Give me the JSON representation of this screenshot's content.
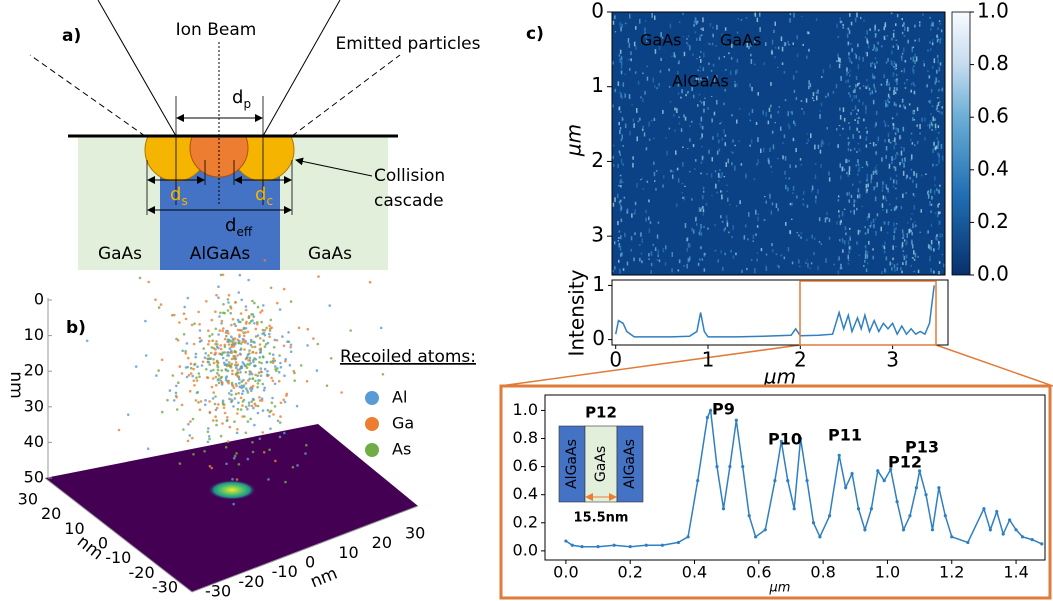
{
  "panel_a": {
    "label": "a)",
    "ion_beam": "Ion Beam",
    "emitted": "Emitted particles",
    "dims": [
      {
        "symbol": "d",
        "sub": "p"
      },
      {
        "symbol": "d",
        "sub": "s"
      },
      {
        "symbol": "d",
        "sub": "c"
      },
      {
        "symbol": "d",
        "sub": "eff"
      }
    ],
    "cascade": [
      "Collision",
      "cascade"
    ],
    "materials": [
      "GaAs",
      "AlGaAs",
      "GaAs"
    ]
  },
  "panel_b": {
    "label": "b)",
    "legend_title": "Recoiled atoms:",
    "legend": [
      {
        "name": "Al",
        "color": "#5b9bd5"
      },
      {
        "name": "Ga",
        "color": "#ed7d31"
      },
      {
        "name": "As",
        "color": "#70ad47"
      }
    ],
    "z_label": "nm",
    "z_ticks": [
      0,
      10,
      20,
      30,
      40,
      50
    ],
    "y_label": "nm",
    "y_ticks": [
      30,
      20,
      10,
      0,
      -10,
      -20,
      -30
    ],
    "x_label": "nm",
    "x_ticks": [
      -30,
      -20,
      -10,
      0,
      10,
      20,
      30
    ]
  },
  "panel_c": {
    "label": "c)",
    "heatmap": {
      "ylabel": "µm",
      "ylim": [
        0,
        3.52
      ],
      "yticks": [
        0,
        1,
        2,
        3
      ],
      "annotations": [
        "GaAs",
        "GaAs",
        "AlGaAs"
      ],
      "colorbar": {
        "lim": [
          0,
          1
        ],
        "ticks": [
          {
            "value": 0,
            "label": "0.0"
          },
          {
            "value": 0.2,
            "label": "0.2"
          },
          {
            "value": 0.4,
            "label": "0.4"
          },
          {
            "value": 0.6,
            "label": "0.6"
          },
          {
            "value": 0.8,
            "label": "0.8"
          },
          {
            "value": 1,
            "label": "1.0"
          }
        ]
      }
    }
  },
  "chart_data": [
    {
      "type": "line",
      "ylabel": "Intensity",
      "xlabel": "µm",
      "color": "#2f7fc1",
      "x": [
        0,
        0.03,
        0.08,
        0.12,
        0.2,
        0.4,
        0.6,
        0.8,
        0.88,
        0.92,
        0.96,
        1.0,
        1.3,
        1.6,
        1.9,
        1.95,
        2.0,
        2.2,
        2.35,
        2.42,
        2.47,
        2.52,
        2.56,
        2.62,
        2.66,
        2.7,
        2.75,
        2.8,
        2.85,
        2.9,
        2.95,
        3.0,
        3.05,
        3.1,
        3.15,
        3.2,
        3.25,
        3.3,
        3.35,
        3.4,
        3.45
      ],
      "values": [
        0.1,
        0.35,
        0.3,
        0.15,
        0.05,
        0.05,
        0.05,
        0.06,
        0.15,
        0.5,
        0.15,
        0.05,
        0.05,
        0.06,
        0.08,
        0.2,
        0.07,
        0.08,
        0.1,
        0.5,
        0.2,
        0.45,
        0.15,
        0.4,
        0.2,
        0.45,
        0.15,
        0.35,
        0.15,
        0.3,
        0.2,
        0.3,
        0.1,
        0.25,
        0.1,
        0.2,
        0.1,
        0.15,
        0.1,
        0.3,
        1.0
      ],
      "xlim": [
        -0.04,
        3.6
      ],
      "ylim": [
        -0.1,
        1.1
      ],
      "xticks": [
        0,
        1,
        2,
        3
      ],
      "yticks": [
        0,
        1
      ]
    },
    {
      "type": "line",
      "xlabel": "µm",
      "color": "#2f7fc1",
      "markers": true,
      "x": [
        0,
        0.02,
        0.05,
        0.1,
        0.15,
        0.2,
        0.25,
        0.3,
        0.35,
        0.38,
        0.41,
        0.44,
        0.45,
        0.47,
        0.49,
        0.51,
        0.53,
        0.55,
        0.57,
        0.59,
        0.62,
        0.65,
        0.67,
        0.69,
        0.71,
        0.73,
        0.75,
        0.77,
        0.79,
        0.82,
        0.85,
        0.87,
        0.89,
        0.91,
        0.93,
        0.95,
        0.97,
        0.99,
        1.01,
        1.03,
        1.05,
        1.07,
        1.09,
        1.1,
        1.12,
        1.14,
        1.16,
        1.18,
        1.2,
        1.25,
        1.3,
        1.32,
        1.34,
        1.36,
        1.38,
        1.4,
        1.42,
        1.45,
        1.48
      ],
      "values": [
        0.07,
        0.04,
        0.03,
        0.03,
        0.04,
        0.03,
        0.04,
        0.04,
        0.06,
        0.1,
        0.5,
        0.95,
        1.0,
        0.6,
        0.3,
        0.6,
        0.93,
        0.6,
        0.25,
        0.1,
        0.15,
        0.5,
        0.78,
        0.5,
        0.3,
        0.8,
        0.5,
        0.2,
        0.1,
        0.25,
        0.68,
        0.45,
        0.55,
        0.3,
        0.15,
        0.3,
        0.57,
        0.5,
        0.58,
        0.35,
        0.15,
        0.25,
        0.45,
        0.57,
        0.4,
        0.15,
        0.45,
        0.25,
        0.1,
        0.06,
        0.3,
        0.15,
        0.28,
        0.12,
        0.22,
        0.15,
        0.1,
        0.08,
        0.05
      ],
      "xlim": [
        -0.065,
        1.49
      ],
      "ylim": [
        -0.065,
        1.11
      ],
      "xticks": [
        {
          "value": 0,
          "label": "0.0"
        },
        {
          "value": 0.2,
          "label": "0.2"
        },
        {
          "value": 0.4,
          "label": "0.4"
        },
        {
          "value": 0.6,
          "label": "0.6"
        },
        {
          "value": 0.8,
          "label": "0.8"
        },
        {
          "value": 1,
          "label": "1.0"
        },
        {
          "value": 1.2,
          "label": "1.2"
        },
        {
          "value": 1.4,
          "label": "1.4"
        }
      ],
      "yticks": [
        {
          "value": 0,
          "label": "0.0"
        },
        {
          "value": 0.2,
          "label": "0.2"
        },
        {
          "value": 0.4,
          "label": "0.4"
        },
        {
          "value": 0.6,
          "label": "0.6"
        },
        {
          "value": 0.8,
          "label": "0.8"
        },
        {
          "value": 1,
          "label": "1.0"
        }
      ],
      "annotations": [
        "P9",
        "P10",
        "P11",
        "P12",
        "P13"
      ],
      "inset": {
        "title": "P12",
        "layers": [
          "AlGaAs",
          "GaAs",
          "AlGaAs"
        ],
        "width": "15.5nm"
      }
    }
  ]
}
